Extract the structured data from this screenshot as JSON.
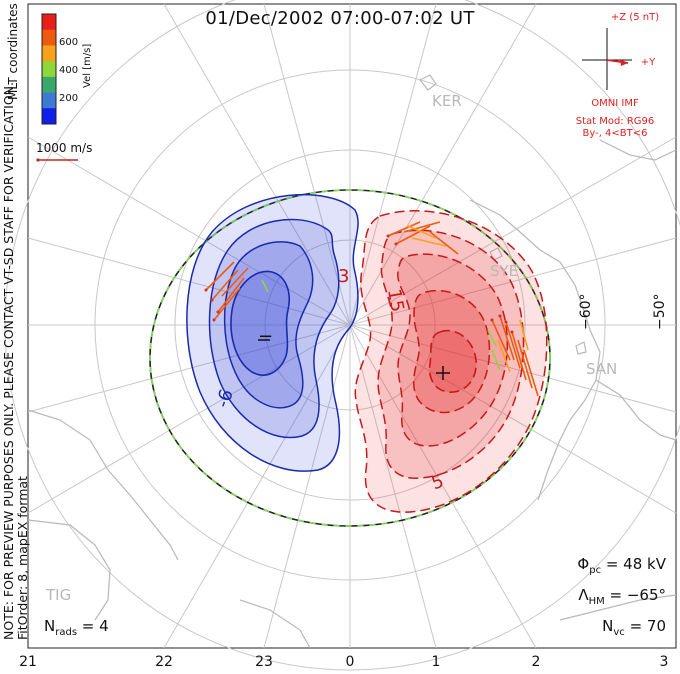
{
  "header": {
    "title": "01/Dec/2002 07:00-07:02 UT"
  },
  "side_note": {
    "line1": "NOTE: FOR PREVIEW PURPOSES ONLY. PLEASE CONTACT VT-SD STAFF FOR VERIFICATION.",
    "line2": "FitOrder: 8, mapEX format"
  },
  "coord_label": "MLT coordinates",
  "colorbar": {
    "unit": "Vel [m/s]",
    "ticks": [
      "600",
      "400",
      "200"
    ],
    "colors": [
      "#e8201c",
      "#f05a10",
      "#f6a21a",
      "#8ed63a",
      "#3aa86a",
      "#3c7ad4",
      "#1020e8"
    ]
  },
  "vector_reference": {
    "label": "1000 m/s",
    "color": "#cc2222"
  },
  "imf": {
    "z_label": "+Z (5 nT)",
    "y_label": "+Y",
    "source": "OMNI IMF",
    "model_line1": "Stat Mod: RG96",
    "model_line2": "By-, 4<BT<6",
    "color": "#e02020"
  },
  "stats": {
    "phi_label": "Φ",
    "phi_sub": "pc",
    "phi_value": " = 48 kV",
    "lam_label": "Λ",
    "lam_sub": "HM",
    "lam_value": " = −65°",
    "nvc_label": "N",
    "nvc_sub": "vc",
    "nvc_value": " = 70",
    "nrads_label": "N",
    "nrads_sub": "rads",
    "nrads_value": " = 4"
  },
  "mlt_axis": [
    "21",
    "22",
    "23",
    "0",
    "1",
    "2",
    "3"
  ],
  "latitude_labels": [
    "−60°",
    "−50°"
  ],
  "sites": [
    "KER",
    "SYE",
    "SAN",
    "TIG"
  ],
  "contour_labels": {
    "neg1": "−",
    "neg2": "-6",
    "pos1": "3",
    "pos2": "15",
    "pos3": "5",
    "pos4": "+"
  },
  "colors": {
    "negative_fill": "#3f4fd8",
    "negative_line": "#1a2ab0",
    "positive_fill": "#e83030",
    "positive_line": "#c81818",
    "grid": "#c8c8c8",
    "coast": "#b8b8b8",
    "hm_boundary_a": "#222222",
    "hm_boundary_b": "#7fd85a"
  }
}
